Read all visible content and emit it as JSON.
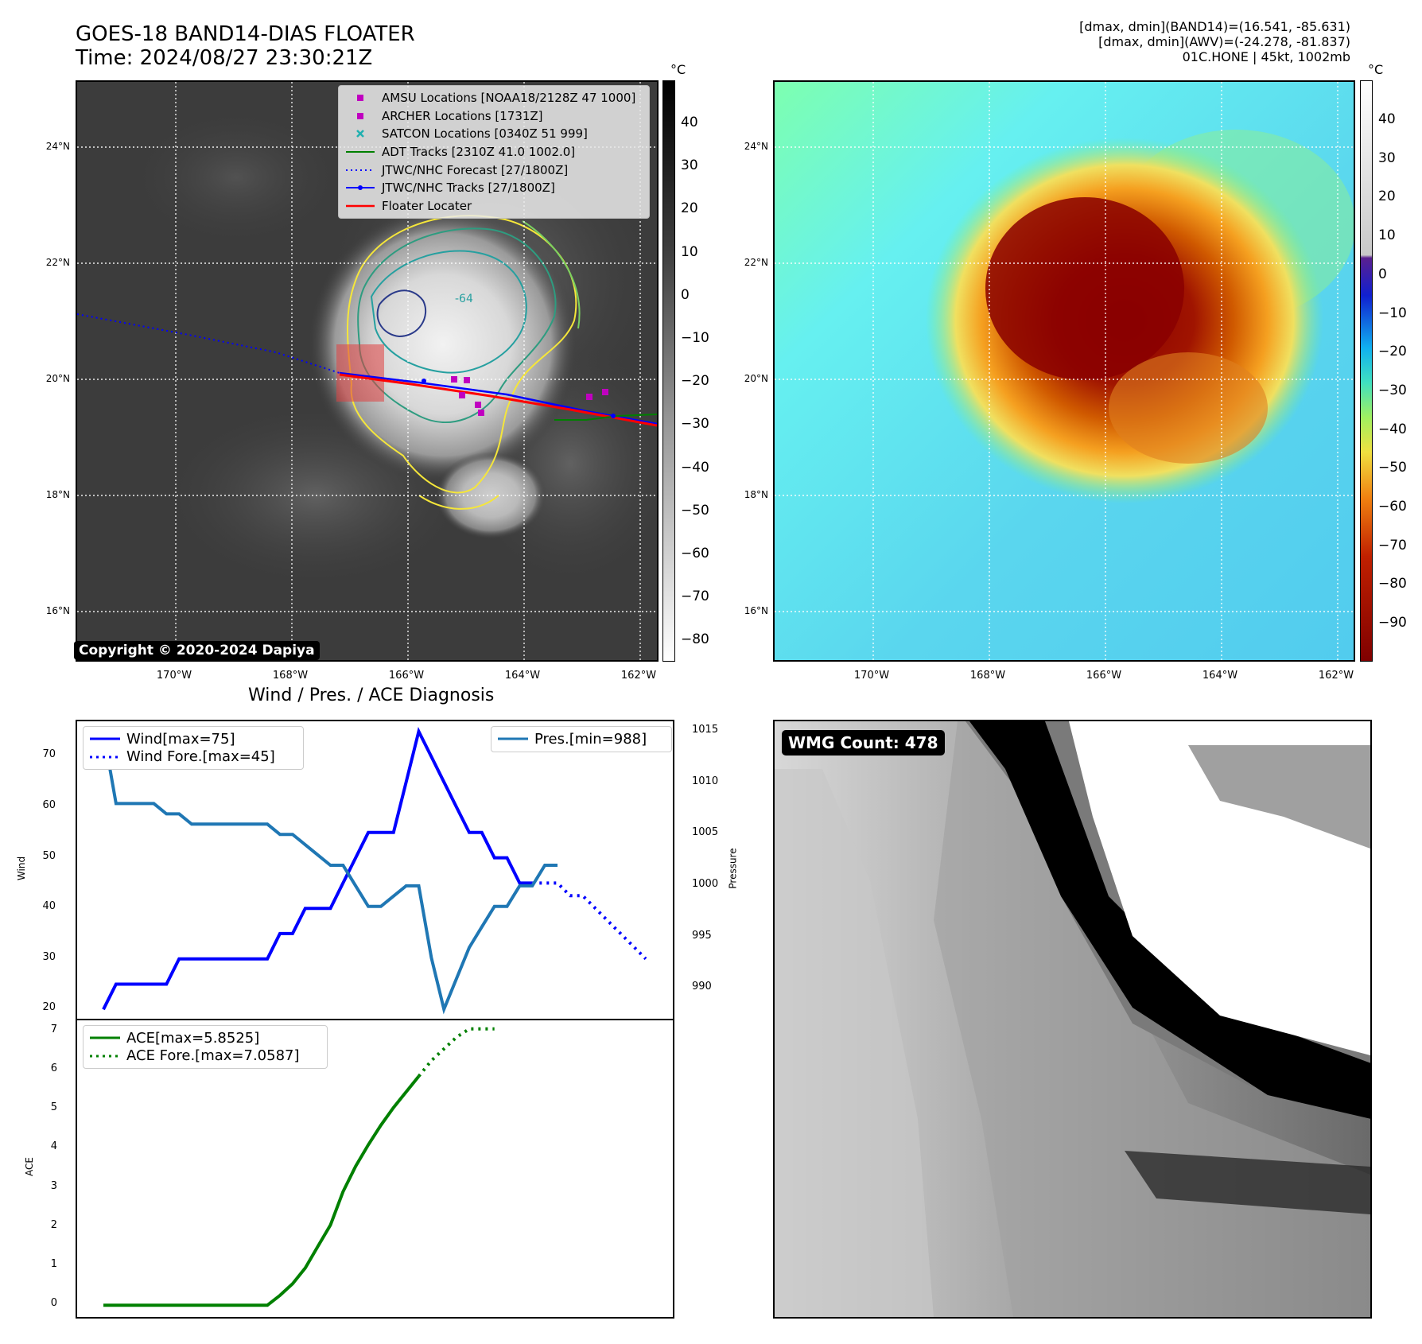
{
  "header": {
    "title_line1": "GOES-18 BAND14-DIAS FLOATER",
    "title_line2": "Time: 2024/08/27 23:30:21Z",
    "meta_line1": "[dmax, dmin](BAND14)=(16.541, -85.631)",
    "meta_line2": "[dmax, dmin](AWV)=(-24.278, -81.837)",
    "meta_line3": "01C.HONE | 45kt, 1002mb"
  },
  "map": {
    "lat_labels": [
      "24°N",
      "22°N",
      "20°N",
      "18°N",
      "16°N"
    ],
    "lon_labels": [
      "170°W",
      "168°W",
      "166°W",
      "164°W",
      "162°W"
    ],
    "copyright": "Copyright © 2020-2024 Dapiya",
    "contour_label": "-64"
  },
  "colorbar_left": {
    "unit": "°C",
    "ticks": [
      "40",
      "30",
      "20",
      "10",
      "0",
      "−10",
      "−20",
      "−30",
      "−40",
      "−50",
      "−60",
      "−70",
      "−80"
    ]
  },
  "colorbar_right": {
    "unit": "°C",
    "ticks": [
      "40",
      "30",
      "20",
      "10",
      "0",
      "−10",
      "−20",
      "−30",
      "−40",
      "−50",
      "−60",
      "−70",
      "−80",
      "−90"
    ]
  },
  "legend": {
    "items": [
      {
        "label": "AMSU Locations [NOAA18/2128Z 47 1000]",
        "color": "#c000c0",
        "symbol": "square"
      },
      {
        "label": "ARCHER Locations [1731Z]",
        "color": "#c000c0",
        "symbol": "square"
      },
      {
        "label": "SATCON Locations [0340Z 51 999]",
        "color": "#20b0b0",
        "symbol": "x"
      },
      {
        "label": "ADT Tracks [2310Z 41.0 1002.0]",
        "color": "#008000",
        "symbol": "line"
      },
      {
        "label": "JTWC/NHC Forecast [27/1800Z]",
        "color": "#0000ff",
        "symbol": "dotted"
      },
      {
        "label": "JTWC/NHC Tracks [27/1800Z]",
        "color": "#0000ff",
        "symbol": "linedot"
      },
      {
        "label": "Floater Locater",
        "color": "#ff0000",
        "symbol": "line"
      }
    ]
  },
  "diagnosis": {
    "title": "Wind / Pres. / ACE Diagnosis",
    "wind_ylabel": "Wind",
    "pres_ylabel": "Pressure",
    "ace_ylabel": "ACE",
    "wmg_label": "WMG Count: 478"
  },
  "chart_data": [
    {
      "type": "line",
      "title": "Wind / Pres. / ACE Diagnosis",
      "ylabel": "Wind",
      "ylim": [
        18,
        77
      ],
      "yticks": [
        "70",
        "60",
        "50",
        "40",
        "30",
        "20"
      ],
      "y2label": "Pressure",
      "y2lim": [
        987,
        1016
      ],
      "y2ticks": [
        "1015",
        "1010",
        "1005",
        "1000",
        "995",
        "990"
      ],
      "series": [
        {
          "name": "Wind[max=75]",
          "axis": "left",
          "style": "solid",
          "color": "#0000ff",
          "values": [
            20,
            25,
            25,
            25,
            25,
            25,
            30,
            30,
            30,
            30,
            30,
            30,
            30,
            30,
            35,
            35,
            40,
            40,
            40,
            45,
            50,
            55,
            55,
            55,
            65,
            75,
            70,
            65,
            60,
            55,
            55,
            50,
            50,
            45,
            45
          ]
        },
        {
          "name": "Wind Fore.[max=45]",
          "axis": "left",
          "style": "dotted",
          "color": "#0000ff",
          "values_start_index": 34,
          "values": [
            45,
            45,
            45,
            42.5,
            42.5,
            40,
            37.5,
            35,
            32.5,
            30
          ]
        },
        {
          "name": "Pres.[min=988]",
          "axis": "right",
          "style": "solid",
          "color": "#1f77b4",
          "values": [
            1015,
            1008,
            1008,
            1008,
            1008,
            1007,
            1007,
            1006,
            1006,
            1006,
            1006,
            1006,
            1006,
            1006,
            1005,
            1005,
            1004,
            1003,
            1002,
            1002,
            1000,
            998,
            998,
            999,
            1000,
            1000,
            993,
            988,
            991,
            994,
            996,
            998,
            998,
            1000,
            1000,
            1002,
            1002
          ]
        }
      ]
    },
    {
      "type": "line",
      "ylabel": "ACE",
      "ylim": [
        -0.3,
        7.3
      ],
      "yticks": [
        "7",
        "6",
        "5",
        "4",
        "3",
        "2",
        "1",
        "0"
      ],
      "series": [
        {
          "name": "ACE[max=5.8525]",
          "style": "solid",
          "color": "#008000",
          "values": [
            0,
            0,
            0,
            0,
            0,
            0,
            0,
            0,
            0,
            0,
            0,
            0,
            0,
            0,
            0.25,
            0.55,
            0.95,
            1.5,
            2.05,
            2.9,
            3.55,
            4.1,
            4.6,
            5.05,
            5.45,
            5.85
          ]
        },
        {
          "name": "ACE Fore.[max=7.0587]",
          "style": "dotted",
          "color": "#008000",
          "values_start_index": 25,
          "values": [
            5.85,
            6.25,
            6.55,
            6.85,
            7.06,
            7.06,
            7.06
          ]
        }
      ]
    }
  ]
}
